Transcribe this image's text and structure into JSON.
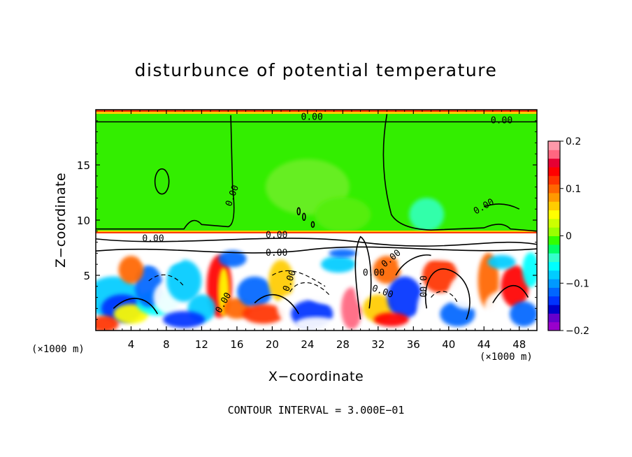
{
  "chart_data": {
    "type": "heatmap",
    "title": "disturbunce of potential temperature",
    "xlabel": "X−coordinate",
    "ylabel": "Z−coordinate",
    "x_unit": "(×1000 m)",
    "xlim": [
      0,
      50
    ],
    "ylim": [
      0,
      20
    ],
    "x_ticks": [
      4,
      8,
      12,
      16,
      20,
      24,
      28,
      32,
      36,
      40,
      44,
      48
    ],
    "y_ticks": [
      5,
      10,
      15
    ],
    "colorbar": {
      "min": -0.2,
      "max": 0.2,
      "tick_values": [
        0.2,
        0.1,
        0,
        -0.1,
        -0.2
      ],
      "tick_labels": [
        "0.2",
        "0.1",
        "0",
        "−0.1",
        "−0.2"
      ],
      "colors": [
        "#9900cc",
        "#6600cc",
        "#0000cc",
        "#0033ff",
        "#0066ff",
        "#0099ff",
        "#00ccff",
        "#00ffff",
        "#33ffcc",
        "#00ff66",
        "#33ff00",
        "#99ff00",
        "#ccff00",
        "#ffff00",
        "#ffcc00",
        "#ff9900",
        "#ff6600",
        "#ff3300",
        "#ff0000",
        "#e60033",
        "#ff6680",
        "#ff99aa"
      ]
    },
    "contour_labels": [
      "0.00",
      "0.00",
      "0.00",
      "0.00",
      "0.00",
      "0.00",
      "0.00",
      "0.00",
      "0.00",
      "0.00",
      "0.00",
      "0.00",
      "0.00"
    ],
    "contour_interval_text": "CONTOUR INTERVAL = 3.000E−01"
  }
}
